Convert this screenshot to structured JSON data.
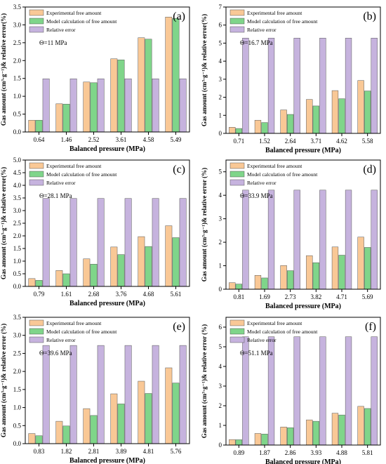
{
  "colors": {
    "experimental": "#F9C896",
    "model": "#7FD58A",
    "relative": "#C6B3DE",
    "frame": "#000000"
  },
  "chart_data": [
    {
      "type": "bar",
      "panel_label": "(a)",
      "condition": "Θ=11 MPa",
      "categories": [
        "0.64",
        "1.46",
        "2.52",
        "3.61",
        "4.58",
        "5.49"
      ],
      "series": [
        {
          "name": "Experimental free amount",
          "values": [
            0.33,
            0.79,
            1.4,
            2.05,
            2.64,
            3.22
          ]
        },
        {
          "name": "Model calculation of free amount",
          "values": [
            0.33,
            0.78,
            1.38,
            2.02,
            2.6,
            3.18
          ]
        },
        {
          "name": "Relative error",
          "values": [
            1.49,
            1.49,
            1.49,
            1.49,
            1.49,
            1.49
          ]
        }
      ],
      "xlabel": "Balanced pressure (MPa)",
      "ylabel": "Gas amount (cm³·g⁻¹)& relative error(%)",
      "ylim": [
        0,
        3.5
      ],
      "yticks": [
        "0.0",
        "0.5",
        "1.0",
        "1.5",
        "2.0",
        "2.5",
        "3.0",
        "3.5"
      ]
    },
    {
      "type": "bar",
      "panel_label": "(b)",
      "condition": "Θ=16.7 MPa",
      "categories": [
        "0.71",
        "1.52",
        "2.64",
        "3.71",
        "4.62",
        "5.58"
      ],
      "series": [
        {
          "name": "Experimental free amount",
          "values": [
            0.34,
            0.73,
            1.3,
            1.88,
            2.37,
            2.93
          ]
        },
        {
          "name": "Model calculation of free amount",
          "values": [
            0.27,
            0.6,
            1.05,
            1.52,
            1.92,
            2.35
          ]
        },
        {
          "name": "Relative error",
          "values": [
            5.28,
            5.28,
            5.28,
            5.28,
            5.28,
            5.28
          ]
        }
      ],
      "xlabel": "Balanced pressure (MPa)",
      "ylabel": "Gas amount (cm³·g⁻¹)& relative error(%)",
      "ylim": [
        0,
        7
      ],
      "yticks": [
        "0",
        "1",
        "2",
        "3",
        "4",
        "5",
        "6",
        "7"
      ]
    },
    {
      "type": "bar",
      "panel_label": "(c)",
      "condition": "Θ=28.1 MPa",
      "categories": [
        "0.79",
        "1.61",
        "2.68",
        "3.76",
        "4.68",
        "5.61"
      ],
      "series": [
        {
          "name": "Experimental free amount",
          "values": [
            0.31,
            0.63,
            1.09,
            1.56,
            1.97,
            2.4
          ]
        },
        {
          "name": "Model calculation of free amount",
          "values": [
            0.24,
            0.5,
            0.88,
            1.26,
            1.58,
            1.93
          ]
        },
        {
          "name": "Relative error",
          "values": [
            3.48,
            3.48,
            3.48,
            3.48,
            3.48,
            3.48
          ]
        }
      ],
      "xlabel": "Balanced pressure (MPa)",
      "ylabel": "Gas amount (cm³·g⁻¹)& relative error(%)",
      "ylim": [
        0,
        5
      ],
      "yticks": [
        "0.0",
        "0.5",
        "1.0",
        "1.5",
        "2.0",
        "2.5",
        "3.0",
        "3.5",
        "4.0",
        "4.5",
        "5.0"
      ]
    },
    {
      "type": "bar",
      "panel_label": "(d)",
      "condition": "Θ=33.9 MPa",
      "categories": [
        "0.81",
        "1.69",
        "2.73",
        "3.82",
        "4.71",
        "5.69"
      ],
      "series": [
        {
          "name": "Experimental free amount",
          "values": [
            0.28,
            0.59,
            1.01,
            1.43,
            1.8,
            2.22
          ]
        },
        {
          "name": "Model calculation of free amount",
          "values": [
            0.22,
            0.48,
            0.79,
            1.13,
            1.45,
            1.78
          ]
        },
        {
          "name": "Relative error",
          "values": [
            4.22,
            4.22,
            4.22,
            4.22,
            4.22,
            4.22
          ]
        }
      ],
      "xlabel": "Balanced pressure (MPa)",
      "ylabel": "Gas amount (cm³·g⁻¹)& relative error (%)",
      "ylim": [
        0,
        5.5
      ],
      "yticks": [
        "0",
        "1",
        "2",
        "3",
        "4",
        "5"
      ]
    },
    {
      "type": "bar",
      "panel_label": "(e)",
      "condition": "Θ=39.6 MPa",
      "categories": [
        "0.83",
        "1.82",
        "2.81",
        "3.89",
        "4.81",
        "5.76"
      ],
      "series": [
        {
          "name": "Experimental free amount",
          "values": [
            0.28,
            0.62,
            0.97,
            1.38,
            1.73,
            2.1
          ]
        },
        {
          "name": "Model calculation of free amount",
          "values": [
            0.22,
            0.49,
            0.78,
            1.1,
            1.39,
            1.68
          ]
        },
        {
          "name": "Relative error",
          "values": [
            2.72,
            2.72,
            2.72,
            2.72,
            2.72,
            2.72
          ]
        }
      ],
      "xlabel": "Balanced pressure (MPa)",
      "ylabel": "Gas amount (cm³·g⁻¹)& relative error (%)",
      "ylim": [
        0,
        3.5
      ],
      "yticks": [
        "0.0",
        "0.5",
        "1.0",
        "1.5",
        "2.0",
        "2.5",
        "3.0",
        "3.5"
      ]
    },
    {
      "type": "bar",
      "panel_label": "(f)",
      "condition": "Θ=51.1 MPa",
      "categories": [
        "0.89",
        "1.87",
        "2.86",
        "3.93",
        "4.88",
        "5.81"
      ],
      "series": [
        {
          "name": "Experimental free amount",
          "values": [
            0.28,
            0.59,
            0.92,
            1.28,
            1.62,
            1.97
          ]
        },
        {
          "name": "Model calculation of free amount",
          "values": [
            0.27,
            0.56,
            0.88,
            1.21,
            1.53,
            1.86
          ]
        },
        {
          "name": "Relative error",
          "values": [
            5.51,
            5.51,
            5.51,
            5.51,
            5.51,
            5.51
          ]
        }
      ],
      "xlabel": "Balanced pressure (MPa)",
      "ylabel": "Gas amount (cm³·g⁻¹)& relative error (%)",
      "ylim": [
        0,
        6.5
      ],
      "yticks": [
        "0",
        "1",
        "2",
        "3",
        "4",
        "5",
        "6"
      ]
    }
  ]
}
